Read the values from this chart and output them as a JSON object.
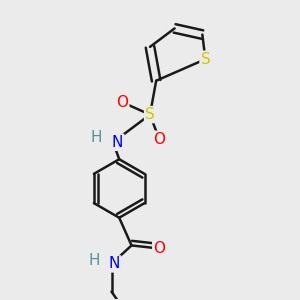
{
  "background_color": "#ebebeb",
  "bond_color": "#1a1a1a",
  "bond_width": 1.8,
  "atom_colors": {
    "N": "#0000ff",
    "O": "#ff0000",
    "S_sulfonyl": "#cccc00",
    "S_thio": "#cccc00",
    "H": "#4d9999"
  },
  "font_size": 11
}
